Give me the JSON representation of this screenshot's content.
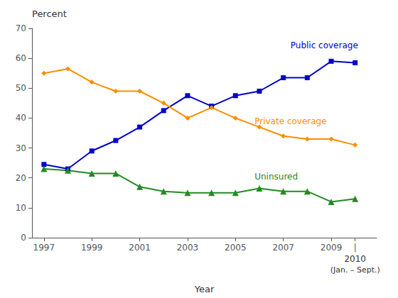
{
  "chart_data": {
    "type": "line",
    "x": [
      1997,
      1998,
      1999,
      2000,
      2001,
      2002,
      2003,
      2004,
      2005,
      2006,
      2007,
      2008,
      2009,
      2010
    ],
    "series": [
      {
        "name": "Public coverage",
        "color": "#0000CC",
        "marker": "square",
        "values": [
          24.5,
          23.0,
          29.0,
          32.5,
          37.0,
          42.5,
          47.5,
          44.0,
          47.5,
          49.0,
          53.5,
          53.5,
          59.0,
          58.5
        ]
      },
      {
        "name": "Private coverage",
        "color": "#FF8C00",
        "marker": "diamond",
        "values": [
          55.0,
          56.5,
          52.0,
          49.0,
          49.0,
          45.0,
          40.0,
          43.5,
          40.0,
          37.0,
          34.0,
          33.0,
          33.0,
          31.0
        ]
      },
      {
        "name": "Uninsured",
        "color": "#228B22",
        "marker": "triangle",
        "values": [
          23.0,
          22.5,
          21.5,
          21.5,
          17.0,
          15.5,
          15.0,
          15.0,
          15.0,
          16.5,
          15.5,
          15.5,
          12.0,
          13.0
        ]
      }
    ],
    "xlabel": "Year",
    "ylabel": "Percent",
    "xlim": [
      1996.5,
      2010.9
    ],
    "xticks": [
      1997,
      1999,
      2001,
      2003,
      2005,
      2007,
      2009,
      {
        "value": 2010,
        "label": "|"
      }
    ],
    "ylim": [
      0,
      70
    ],
    "yticks": [
      0,
      10,
      20,
      30,
      40,
      50,
      60,
      70
    ],
    "annotations": [
      "2010",
      "(Jan. – Sept.)"
    ],
    "grid": false
  }
}
